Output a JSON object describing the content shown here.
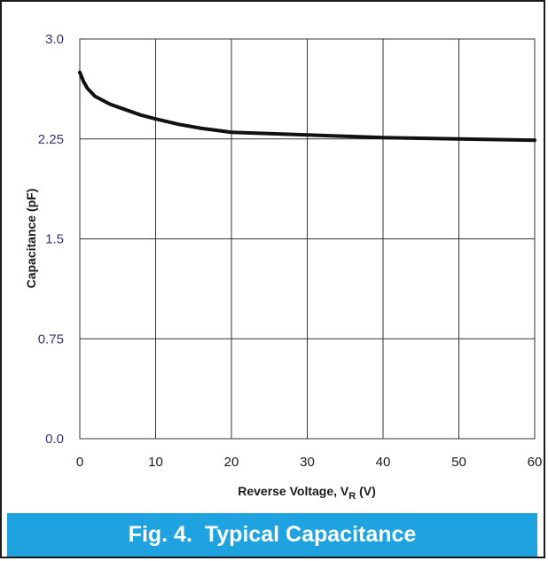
{
  "chart_data": {
    "type": "line",
    "xlabel": "Reverse Voltage, V",
    "xlabel_sub": "R",
    "xlabel_unit": " (V)",
    "ylabel": "Capacitance (pF)",
    "xlim": [
      0,
      60
    ],
    "ylim": [
      0,
      3.0
    ],
    "x_ticks": [
      0,
      10,
      20,
      30,
      40,
      50,
      60
    ],
    "y_ticks": [
      0,
      0.75,
      1.5,
      2.25,
      3.0
    ],
    "y_tick_labels": [
      "0.0",
      "0.75",
      "1.5",
      "2.25",
      "3.0"
    ],
    "grid": true,
    "series": [
      {
        "x": [
          0,
          0.5,
          1,
          2,
          3,
          4,
          6,
          8,
          10,
          13,
          16,
          20,
          25,
          30,
          35,
          40,
          45,
          50,
          55,
          60
        ],
        "y": [
          2.75,
          2.68,
          2.63,
          2.57,
          2.54,
          2.51,
          2.47,
          2.43,
          2.4,
          2.36,
          2.33,
          2.3,
          2.29,
          2.28,
          2.27,
          2.26,
          2.255,
          2.25,
          2.245,
          2.24
        ]
      }
    ]
  },
  "caption": "Fig. 4.  Typical Capacitance",
  "colors": {
    "caption_bg": "#1ea3e0",
    "curve": "#111111",
    "grid": "#333333"
  }
}
